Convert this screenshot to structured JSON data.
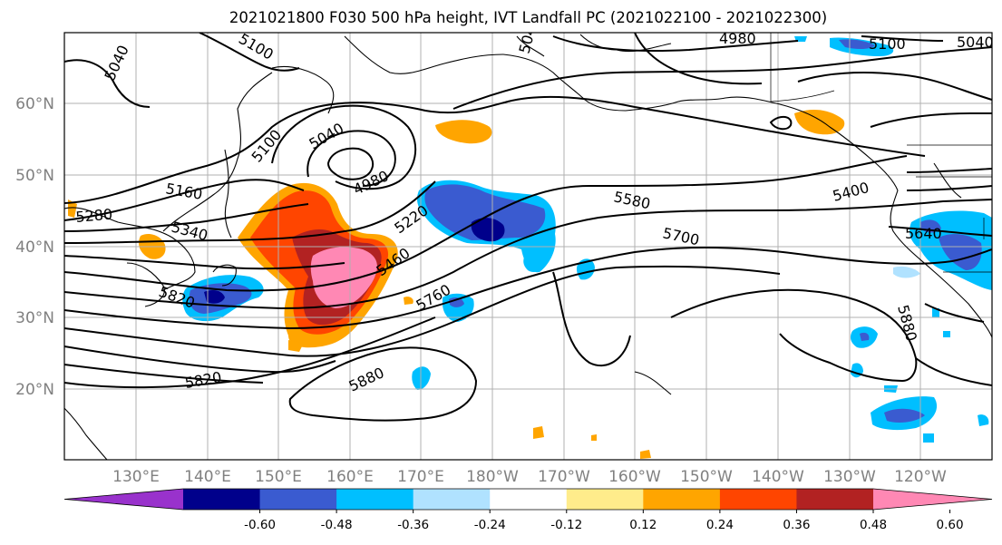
{
  "title": "2021021800 F030 500 hPa height, IVT Landfall PC (2021022100 - 2021022300)",
  "lat_labels": [
    "60°N",
    "50°N",
    "40°N",
    "30°N",
    "20°N"
  ],
  "lon_labels": [
    "130°E",
    "140°E",
    "150°E",
    "160°E",
    "170°E",
    "180°W",
    "170°W",
    "160°W",
    "150°W",
    "140°W",
    "130°W",
    "120°W"
  ],
  "contour_labels": [
    "5040",
    "5100",
    "5040",
    "5100",
    "4980",
    "5100",
    "4980",
    "5040",
    "5160",
    "5280",
    "5340",
    "5220",
    "5460",
    "5580",
    "5700",
    "5400",
    "5640",
    "5760",
    "5820",
    "5880",
    "5880",
    "5820"
  ],
  "colorbar": {
    "ticks": [
      "-0.60",
      "-0.48",
      "-0.36",
      "-0.24",
      "-0.12",
      "0.12",
      "0.24",
      "0.36",
      "0.48",
      "0.60"
    ],
    "colors": [
      "#9932cc",
      "#00008b",
      "#3a5bd0",
      "#00bfff",
      "#b0e2ff",
      "#ffffff",
      "#ffec8b",
      "#ffa500",
      "#ff4500",
      "#b22222",
      "#ff88b4"
    ]
  }
}
